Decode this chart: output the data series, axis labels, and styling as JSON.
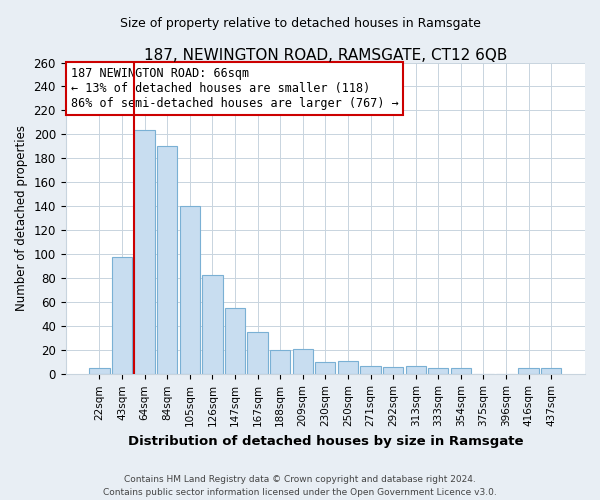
{
  "title": "187, NEWINGTON ROAD, RAMSGATE, CT12 6QB",
  "subtitle": "Size of property relative to detached houses in Ramsgate",
  "xlabel": "Distribution of detached houses by size in Ramsgate",
  "ylabel": "Number of detached properties",
  "bar_labels": [
    "22sqm",
    "43sqm",
    "64sqm",
    "84sqm",
    "105sqm",
    "126sqm",
    "147sqm",
    "167sqm",
    "188sqm",
    "209sqm",
    "230sqm",
    "250sqm",
    "271sqm",
    "292sqm",
    "313sqm",
    "333sqm",
    "354sqm",
    "375sqm",
    "396sqm",
    "416sqm",
    "437sqm"
  ],
  "bar_values": [
    5,
    98,
    204,
    190,
    140,
    83,
    55,
    35,
    20,
    21,
    10,
    11,
    7,
    6,
    7,
    5,
    5,
    0,
    0,
    5,
    5
  ],
  "bar_color": "#c8ddf0",
  "bar_edge_color": "#7ab0d4",
  "highlight_line_color": "#cc0000",
  "highlight_line_xindex": 2,
  "annotation_text": "187 NEWINGTON ROAD: 66sqm\n← 13% of detached houses are smaller (118)\n86% of semi-detached houses are larger (767) →",
  "annotation_box_color": "#ffffff",
  "annotation_box_edge_color": "#cc0000",
  "ylim": [
    0,
    260
  ],
  "yticks": [
    0,
    20,
    40,
    60,
    80,
    100,
    120,
    140,
    160,
    180,
    200,
    220,
    240,
    260
  ],
  "footer_line1": "Contains HM Land Registry data © Crown copyright and database right 2024.",
  "footer_line2": "Contains public sector information licensed under the Open Government Licence v3.0.",
  "bg_color": "#e8eef4",
  "plot_bg_color": "#ffffff",
  "grid_color": "#c8d4de"
}
